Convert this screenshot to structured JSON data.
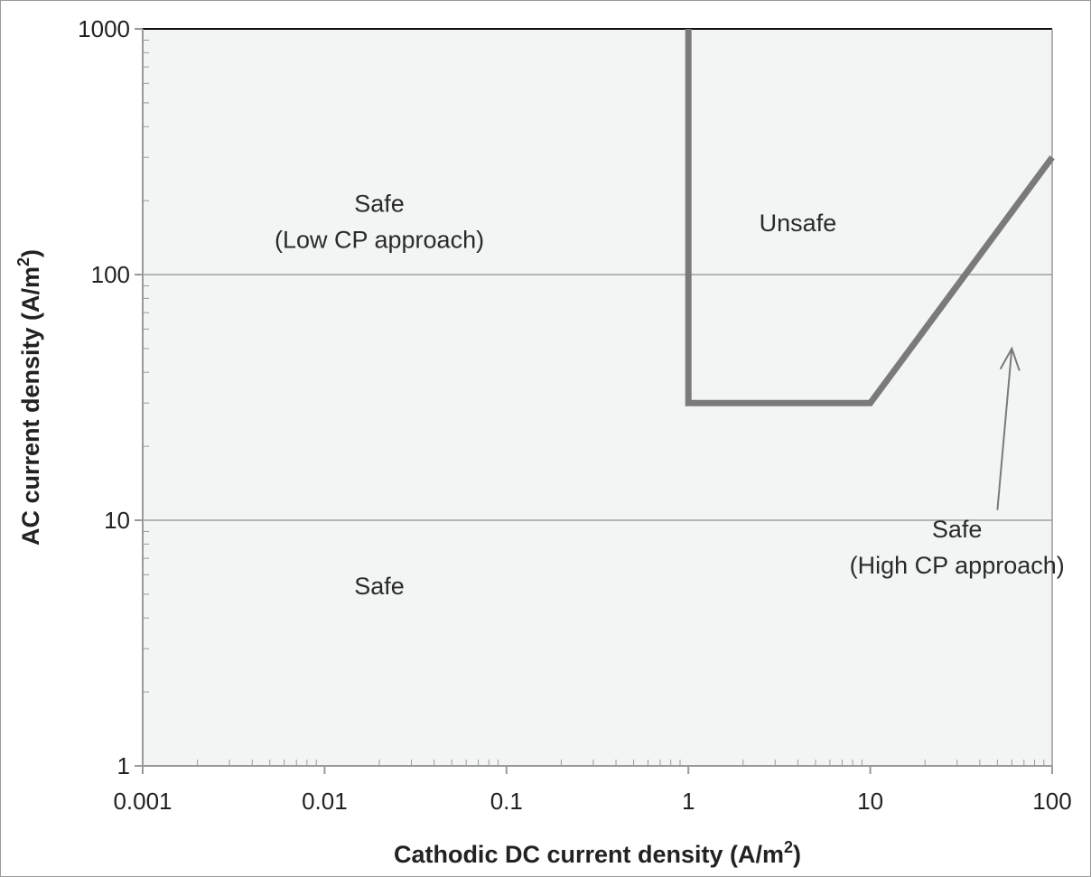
{
  "chart_data": {
    "type": "line",
    "xlabel": "Cathodic DC current density (A/m",
    "xlabel_sup": "2",
    "xlabel_close": ")",
    "ylabel": "AC current density (A/m",
    "ylabel_sup": "2",
    "ylabel_close": ")",
    "x_scale": "log",
    "y_scale": "log",
    "xlim": [
      0.001,
      100
    ],
    "ylim": [
      1,
      1000
    ],
    "x_ticks": [
      "0.001",
      "0.01",
      "0.1",
      "1",
      "10",
      "100"
    ],
    "y_ticks": [
      "1",
      "10",
      "100",
      "1000"
    ],
    "x_tick_values": [
      0.001,
      0.01,
      0.1,
      1,
      10,
      100
    ],
    "y_tick_values": [
      1,
      10,
      100,
      1000
    ],
    "horizontal_gridlines": [
      10,
      100
    ],
    "plot_background": "#f2f5f4",
    "series": [
      {
        "color": "#7a7a7a",
        "points": [
          [
            1,
            1000
          ],
          [
            1,
            30
          ],
          [
            10,
            30
          ],
          [
            100,
            300
          ]
        ]
      }
    ],
    "annotations": [
      {
        "lines": [
          "Safe",
          "(Low CP approach)"
        ],
        "x": 0.02,
        "y": 180
      },
      {
        "lines": [
          "Unsafe"
        ],
        "x": 4,
        "y": 150
      },
      {
        "lines": [
          "Safe"
        ],
        "x": 0.02,
        "y": 5
      },
      {
        "lines": [
          "Safe",
          "(High CP approach)"
        ],
        "x": 30,
        "y": 8.5
      }
    ],
    "arrow": {
      "from": [
        50,
        11
      ],
      "to": [
        60,
        50
      ],
      "color": "#7a7a7a"
    }
  }
}
